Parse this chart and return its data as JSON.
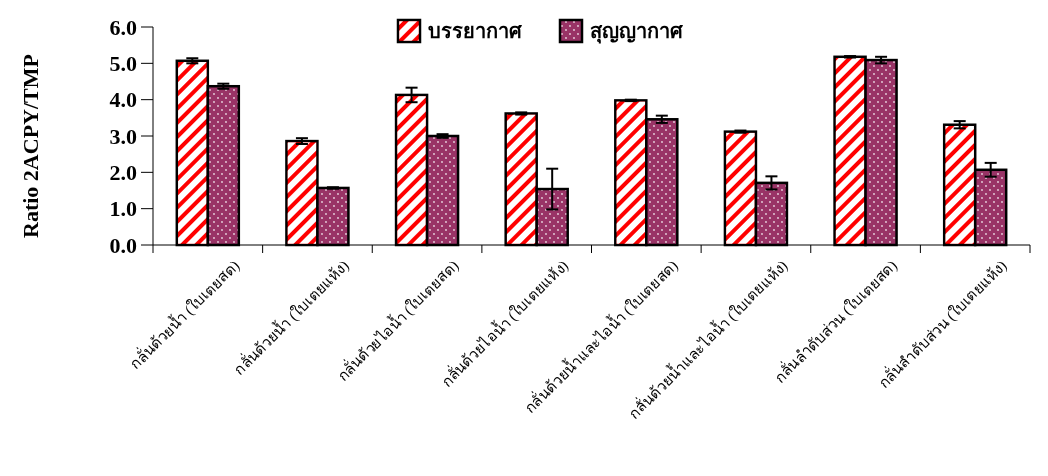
{
  "chart_data": {
    "type": "bar",
    "ylabel": "Ratio 2ACPY/TMP",
    "categories": [
      "กลั่นด้วยน้ำ (ใบเตยสด)",
      "กลั่นด้วยน้ำ (ใบเตยแห้ง)",
      "กลั่นด้วยไอน้ำ (ใบเตยสด)",
      "กลั่นด้วยไอน้ำ (ใบเตยแห้ง)",
      "กลั่นด้วยน้ำและไอน้ำ (ใบเตยสด)",
      "กลั่นด้วยน้ำและไอน้ำ (ใบเตยแห้ง)",
      "กลั่นลำดับส่วน (ใบเตยสด)",
      "กลั่นลำดับส่วน (ใบเตยแห้ง)"
    ],
    "series": [
      {
        "name": "บรรยากาศ",
        "color": "#ff0000",
        "values": [
          5.07,
          2.86,
          4.13,
          3.62,
          3.98,
          3.12,
          5.18,
          3.31
        ],
        "errors": [
          0.07,
          0.08,
          0.2,
          0.03,
          0.02,
          0.03,
          0.02,
          0.1
        ]
      },
      {
        "name": "สุญญากาศ",
        "color": "#993366",
        "values": [
          4.37,
          1.57,
          3.0,
          1.54,
          3.46,
          1.71,
          5.09,
          2.07
        ],
        "errors": [
          0.07,
          0.02,
          0.05,
          0.56,
          0.1,
          0.18,
          0.09,
          0.19
        ]
      }
    ],
    "ylim": [
      0,
      6
    ],
    "yticks": [
      {
        "value": 0,
        "label": "0.0"
      },
      {
        "value": 1,
        "label": "1.0"
      },
      {
        "value": 2,
        "label": "2.0"
      },
      {
        "value": 3,
        "label": "3.0"
      },
      {
        "value": 4,
        "label": "4.0"
      },
      {
        "value": 5,
        "label": "5.0"
      },
      {
        "value": 6,
        "label": "6.0"
      }
    ],
    "legend": "top"
  }
}
